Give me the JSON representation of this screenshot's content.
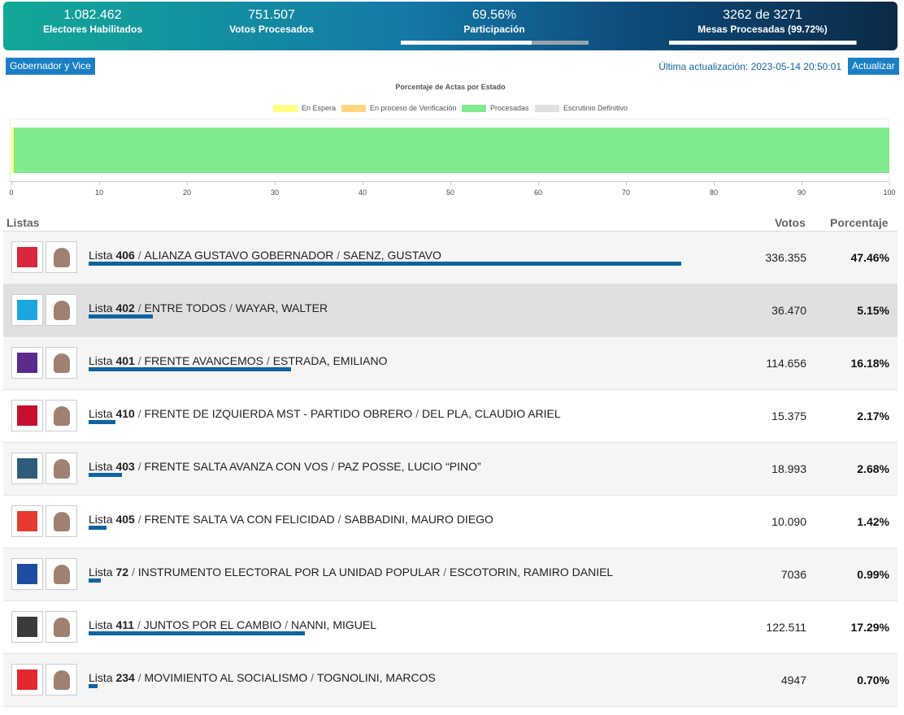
{
  "header": {
    "stats": [
      {
        "value": "1.082.462",
        "label": "Electores Habilitados"
      },
      {
        "value": "751.507",
        "label": "Votos Procesados"
      },
      {
        "value": "69.56%",
        "label": "Participación",
        "progress": 69.56
      },
      {
        "value": "3262 de 3271",
        "label": "Mesas Procesadas (99.72%)",
        "progress": 99.72
      }
    ]
  },
  "toolbar": {
    "category_button": "Gobernador y Vice",
    "last_update": "Última actualización: 2023-05-14 20:50:01",
    "refresh_button": "Actualizar"
  },
  "chart_data": {
    "type": "stacked-bar-h",
    "title": "Porcentaje de Actas por Estado",
    "xlim": [
      0,
      100
    ],
    "xticks": [
      0,
      10,
      20,
      30,
      40,
      50,
      60,
      70,
      80,
      90,
      100
    ],
    "series": [
      {
        "name": "En Espera",
        "color": "#ffff80",
        "values": [
          0.28
        ]
      },
      {
        "name": "En proceso de Verificación",
        "color": "#ffd580",
        "values": [
          0
        ]
      },
      {
        "name": "Procesadas",
        "color": "#80ea8f",
        "values": [
          99.72
        ]
      },
      {
        "name": "Escrutinio Definitivo",
        "color": "#e0e0e0",
        "values": [
          0
        ]
      }
    ]
  },
  "table": {
    "columns": [
      "Listas",
      "Votos",
      "Porcentaje"
    ],
    "list_word": "Lista",
    "separator": "/",
    "rows": [
      {
        "number": "406",
        "party": "ALIANZA GUSTAVO GOBERNADOR",
        "candidate": "SAENZ, GUSTAVO",
        "votes": "336.355",
        "percent": 47.46,
        "percent_label": "47.46%"
      },
      {
        "number": "402",
        "party": "ENTRE TODOS",
        "candidate": "WAYAR, WALTER",
        "votes": "36.470",
        "percent": 5.15,
        "percent_label": "5.15%"
      },
      {
        "number": "401",
        "party": "FRENTE AVANCEMOS",
        "candidate": "ESTRADA, EMILIANO",
        "votes": "114.656",
        "percent": 16.18,
        "percent_label": "16.18%"
      },
      {
        "number": "410",
        "party": "FRENTE DE IZQUIERDA MST - PARTIDO OBRERO",
        "candidate": "DEL PLA, CLAUDIO ARIEL",
        "votes": "15.375",
        "percent": 2.17,
        "percent_label": "2.17%"
      },
      {
        "number": "403",
        "party": "FRENTE SALTA AVANZA CON VOS",
        "candidate": "PAZ POSSE, LUCIO “PINO”",
        "votes": "18.993",
        "percent": 2.68,
        "percent_label": "2.68%"
      },
      {
        "number": "405",
        "party": "FRENTE SALTA VA CON FELICIDAD",
        "candidate": "SABBADINI, MAURO DIEGO",
        "votes": "10.090",
        "percent": 1.42,
        "percent_label": "1.42%"
      },
      {
        "number": "72",
        "party": "INSTRUMENTO ELECTORAL POR LA UNIDAD POPULAR",
        "candidate": "ESCOTORIN, RAMIRO DANIEL",
        "votes": "7036",
        "percent": 0.99,
        "percent_label": "0.99%"
      },
      {
        "number": "411",
        "party": "JUNTOS POR EL CAMBIO",
        "candidate": "NANNI, MIGUEL",
        "votes": "122.511",
        "percent": 17.29,
        "percent_label": "17.29%"
      },
      {
        "number": "234",
        "party": "MOVIMIENTO AL SOCIALISMO",
        "candidate": "TOGNOLINI, MARCOS",
        "votes": "4947",
        "percent": 0.7,
        "percent_label": "0.70%"
      }
    ]
  }
}
